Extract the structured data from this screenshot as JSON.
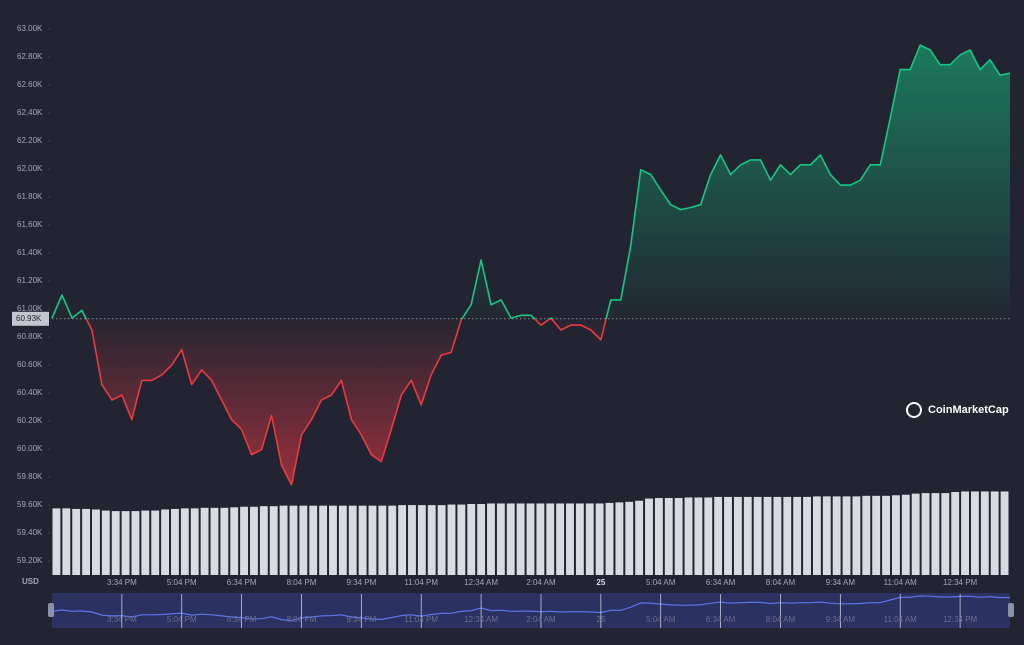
{
  "chart_data": {
    "type": "line",
    "currency": "USD",
    "brand": "CoinMarketCap",
    "reference": {
      "value": 60930,
      "label": "60.93K"
    },
    "categories": [
      null,
      null,
      null,
      null,
      null,
      null,
      null,
      "3:34 PM",
      null,
      null,
      null,
      null,
      null,
      "5:04 PM",
      null,
      null,
      null,
      null,
      null,
      "6:34 PM",
      null,
      null,
      null,
      null,
      null,
      "8:04 PM",
      null,
      null,
      null,
      null,
      null,
      "9:34 PM",
      null,
      null,
      null,
      null,
      null,
      "11:04 PM",
      null,
      null,
      null,
      null,
      null,
      "12:34 AM",
      null,
      null,
      null,
      null,
      null,
      "2:04 AM",
      null,
      null,
      null,
      null,
      null,
      "25",
      null,
      null,
      null,
      null,
      null,
      "5:04 AM",
      null,
      null,
      null,
      null,
      null,
      "6:34 AM",
      null,
      null,
      null,
      null,
      null,
      "8:04 AM",
      null,
      null,
      null,
      null,
      null,
      "9:34 AM",
      null,
      null,
      null,
      null,
      null,
      "11:04 AM",
      null,
      null,
      null,
      null,
      null,
      "12:34 PM",
      null,
      null,
      null,
      null,
      null
    ],
    "up_color": "#16c784",
    "down_color": "#ea3943",
    "values": [
      60936,
      61100,
      60935,
      60990,
      60850,
      60460,
      60350,
      60385,
      60210,
      60490,
      60490,
      60530,
      60600,
      60710,
      60460,
      60565,
      60490,
      60350,
      60210,
      60140,
      59960,
      59995,
      60240,
      59885,
      59745,
      60100,
      60210,
      60350,
      60385,
      60490,
      60210,
      60100,
      59960,
      59910,
      60140,
      60385,
      60490,
      60315,
      60530,
      60670,
      60690,
      60920,
      61030,
      61350,
      61030,
      61065,
      60935,
      60955,
      60955,
      60885,
      60935,
      60850,
      60885,
      60885,
      60850,
      60780,
      61065,
      61065,
      61455,
      61995,
      61960,
      61850,
      61745,
      61710,
      61725,
      61745,
      61960,
      62100,
      61960,
      62030,
      62065,
      62065,
      61920,
      62030,
      61960,
      62030,
      62030,
      62100,
      61960,
      61885,
      61885,
      61920,
      62030,
      62030,
      62365,
      62710,
      62710,
      62885,
      62850,
      62745,
      62745,
      62815,
      62850,
      62710,
      62780,
      62670,
      62685
    ],
    "volume": {
      "axis": "y2",
      "color": "#d9dbe3",
      "values": [
        12.2,
        12.2,
        12.1,
        12.1,
        12.0,
        11.8,
        11.7,
        11.7,
        11.7,
        11.8,
        11.8,
        12.0,
        12.1,
        12.2,
        12.2,
        12.3,
        12.3,
        12.3,
        12.4,
        12.5,
        12.5,
        12.6,
        12.6,
        12.7,
        12.7,
        12.7,
        12.7,
        12.7,
        12.7,
        12.7,
        12.7,
        12.7,
        12.7,
        12.7,
        12.7,
        12.8,
        12.8,
        12.8,
        12.8,
        12.8,
        12.9,
        12.9,
        13.0,
        13.0,
        13.1,
        13.1,
        13.1,
        13.1,
        13.1,
        13.1,
        13.1,
        13.1,
        13.1,
        13.1,
        13.1,
        13.1,
        13.2,
        13.3,
        13.4,
        13.6,
        14.0,
        14.1,
        14.1,
        14.1,
        14.2,
        14.2,
        14.2,
        14.3,
        14.3,
        14.3,
        14.3,
        14.3,
        14.3,
        14.3,
        14.3,
        14.3,
        14.3,
        14.4,
        14.4,
        14.4,
        14.4,
        14.4,
        14.5,
        14.5,
        14.5,
        14.6,
        14.7,
        14.9,
        15.0,
        15.0,
        15.0,
        15.2,
        15.3,
        15.3,
        15.3,
        15.3,
        15.3
      ]
    },
    "y2lim": [
      0,
      100
    ],
    "ylim": [
      59200,
      63000
    ],
    "yticks": [
      {
        "value": 59200,
        "label": "59.20K"
      },
      {
        "value": 59400,
        "label": "59.40K"
      },
      {
        "value": 59600,
        "label": "59.60K"
      },
      {
        "value": 59800,
        "label": "59.80K"
      },
      {
        "value": 60000,
        "label": "60.00K"
      },
      {
        "value": 60200,
        "label": "60.20K"
      },
      {
        "value": 60400,
        "label": "60.40K"
      },
      {
        "value": 60600,
        "label": "60.60K"
      },
      {
        "value": 60800,
        "label": "60.80K"
      },
      {
        "value": 61000,
        "label": "61.00K"
      },
      {
        "value": 61200,
        "label": "61.20K"
      },
      {
        "value": 61400,
        "label": "61.40K"
      },
      {
        "value": 61600,
        "label": "61.60K"
      },
      {
        "value": 61800,
        "label": "61.80K"
      },
      {
        "value": 62000,
        "label": "62.00K"
      },
      {
        "value": 62200,
        "label": "62.20K"
      },
      {
        "value": 62400,
        "label": "62.40K"
      },
      {
        "value": 62600,
        "label": "62.60K"
      },
      {
        "value": 62800,
        "label": "62.80K"
      },
      {
        "value": 63000,
        "label": "63.00K"
      }
    ]
  }
}
